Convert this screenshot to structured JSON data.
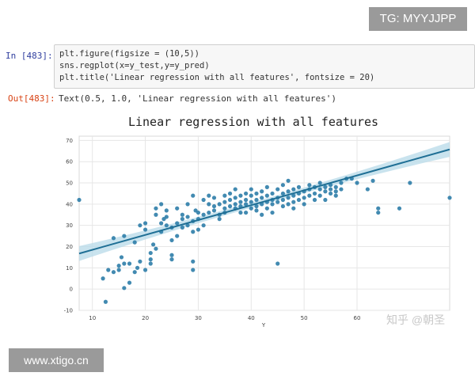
{
  "watermarks": {
    "tg": "TG: MYYJJPP",
    "site": "www.xtigo.cn",
    "zhihu": "知乎 @朝圣"
  },
  "input_cell": {
    "prompt": "In  [483]:",
    "lines": [
      "plt.figure(figsize = (10,5))",
      "sns.regplot(x=y_test,y=y_pred)",
      "plt.title('Linear regression with all features', fontsize = 20)"
    ]
  },
  "output_cell": {
    "prompt": "Out[483]:",
    "text": "Text(0.5, 1.0, 'Linear regression with all features')"
  },
  "colors": {
    "marker": "#2e7da8",
    "line": "#1f6f95",
    "ci_band": "#bcdcea",
    "grid": "#e6e6e6"
  },
  "chart_data": {
    "type": "scatter",
    "title": "Linear regression with all features",
    "xlabel": "Y",
    "ylabel": "",
    "xlim": [
      7.5,
      77.5
    ],
    "ylim": [
      -10,
      72
    ],
    "xticks": [
      10,
      20,
      30,
      40,
      50,
      60
    ],
    "yticks": [
      -10,
      0,
      10,
      20,
      30,
      40,
      50,
      60,
      70
    ],
    "grid": true,
    "regression": {
      "slope": 0.7,
      "intercept": 11.5,
      "ci_halfwidth_at_ends": 3.5,
      "ci_halfwidth_mid": 1.2
    },
    "points": [
      [
        7.5,
        42
      ],
      [
        12,
        5
      ],
      [
        12.5,
        -6
      ],
      [
        13,
        9
      ],
      [
        14,
        8
      ],
      [
        14,
        24
      ],
      [
        15,
        9
      ],
      [
        15,
        11
      ],
      [
        15.5,
        15
      ],
      [
        16,
        12
      ],
      [
        16,
        0.5
      ],
      [
        16,
        25
      ],
      [
        17,
        12
      ],
      [
        17,
        3
      ],
      [
        18,
        22
      ],
      [
        18,
        8
      ],
      [
        18.5,
        10
      ],
      [
        19,
        13
      ],
      [
        19,
        30
      ],
      [
        20,
        28
      ],
      [
        20,
        31
      ],
      [
        20,
        9
      ],
      [
        21,
        12
      ],
      [
        21,
        14
      ],
      [
        21,
        17
      ],
      [
        21.5,
        21
      ],
      [
        22,
        19
      ],
      [
        22,
        35
      ],
      [
        22,
        38
      ],
      [
        23,
        31
      ],
      [
        23,
        27
      ],
      [
        23,
        40
      ],
      [
        23.5,
        33
      ],
      [
        24,
        30
      ],
      [
        24,
        34
      ],
      [
        24,
        37
      ],
      [
        25,
        16
      ],
      [
        25,
        14
      ],
      [
        25,
        23
      ],
      [
        25,
        29
      ],
      [
        26,
        25
      ],
      [
        26,
        31
      ],
      [
        26,
        38
      ],
      [
        27,
        29
      ],
      [
        27,
        33
      ],
      [
        27,
        35
      ],
      [
        28,
        30
      ],
      [
        28,
        34
      ],
      [
        28,
        40
      ],
      [
        29,
        32
      ],
      [
        29,
        27
      ],
      [
        29,
        13
      ],
      [
        29,
        9
      ],
      [
        29,
        44
      ],
      [
        29.5,
        37
      ],
      [
        30,
        33
      ],
      [
        30,
        36
      ],
      [
        30,
        28
      ],
      [
        31,
        35
      ],
      [
        31,
        42
      ],
      [
        31,
        30
      ],
      [
        32,
        36
      ],
      [
        32,
        40
      ],
      [
        32,
        44
      ],
      [
        33,
        37
      ],
      [
        33,
        39
      ],
      [
        33,
        43
      ],
      [
        34,
        35
      ],
      [
        34,
        40
      ],
      [
        34,
        33
      ],
      [
        35,
        38
      ],
      [
        35,
        41
      ],
      [
        35,
        44
      ],
      [
        35,
        36
      ],
      [
        36,
        39
      ],
      [
        36,
        42
      ],
      [
        36,
        45
      ],
      [
        37,
        38
      ],
      [
        37,
        40
      ],
      [
        37,
        43
      ],
      [
        37,
        47
      ],
      [
        38,
        36
      ],
      [
        38,
        41
      ],
      [
        38,
        44
      ],
      [
        38,
        39
      ],
      [
        39,
        40
      ],
      [
        39,
        42
      ],
      [
        39,
        45
      ],
      [
        39,
        36
      ],
      [
        40,
        38
      ],
      [
        40,
        41
      ],
      [
        40,
        44
      ],
      [
        40,
        47
      ],
      [
        41,
        39
      ],
      [
        41,
        42
      ],
      [
        41,
        45
      ],
      [
        41,
        37
      ],
      [
        42,
        40
      ],
      [
        42,
        43
      ],
      [
        42,
        46
      ],
      [
        42,
        35
      ],
      [
        43,
        38
      ],
      [
        43,
        41
      ],
      [
        43,
        44
      ],
      [
        43,
        48
      ],
      [
        44,
        40
      ],
      [
        44,
        42
      ],
      [
        44,
        45
      ],
      [
        44,
        36
      ],
      [
        45,
        41
      ],
      [
        45,
        43
      ],
      [
        45,
        47
      ],
      [
        45,
        12
      ],
      [
        46,
        39
      ],
      [
        46,
        42
      ],
      [
        46,
        45
      ],
      [
        46,
        49
      ],
      [
        47,
        40
      ],
      [
        47,
        43
      ],
      [
        47,
        46
      ],
      [
        47,
        51
      ],
      [
        48,
        41
      ],
      [
        48,
        44
      ],
      [
        48,
        47
      ],
      [
        48,
        38
      ],
      [
        49,
        42
      ],
      [
        49,
        45
      ],
      [
        49,
        48
      ],
      [
        50,
        43
      ],
      [
        50,
        46
      ],
      [
        50,
        40
      ],
      [
        51,
        44
      ],
      [
        51,
        47
      ],
      [
        51,
        49
      ],
      [
        52,
        45
      ],
      [
        52,
        48
      ],
      [
        52,
        42
      ],
      [
        53,
        44
      ],
      [
        53,
        47
      ],
      [
        53,
        50
      ],
      [
        54,
        46
      ],
      [
        54,
        48
      ],
      [
        54,
        42
      ],
      [
        55,
        45
      ],
      [
        55,
        47
      ],
      [
        55,
        49
      ],
      [
        56,
        46
      ],
      [
        56,
        48
      ],
      [
        56,
        44
      ],
      [
        57,
        47
      ],
      [
        57,
        50
      ],
      [
        58,
        52
      ],
      [
        59,
        52
      ],
      [
        60,
        50
      ],
      [
        62,
        47
      ],
      [
        63,
        51
      ],
      [
        64,
        36
      ],
      [
        64,
        38
      ],
      [
        68,
        38
      ],
      [
        70,
        50
      ],
      [
        77.5,
        43
      ]
    ]
  }
}
